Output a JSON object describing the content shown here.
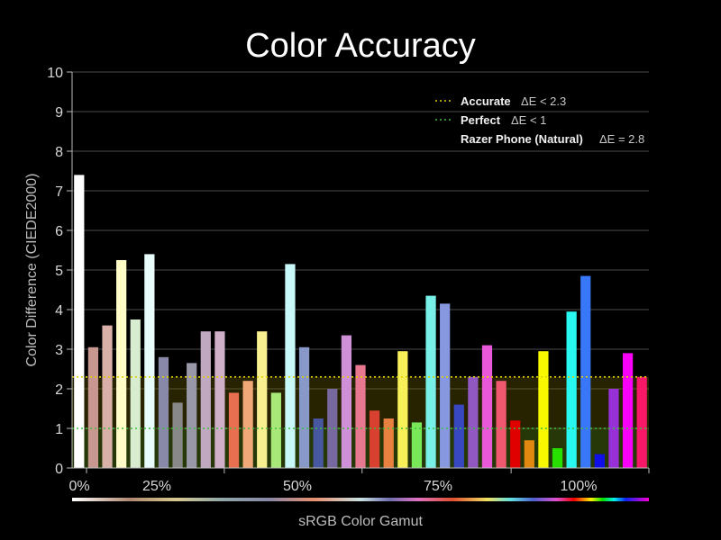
{
  "chart_data": {
    "type": "bar",
    "title": "Color Accuracy",
    "xlabel": "sRGB Color Gamut",
    "ylabel": "Color Difference (CIEDE2000)",
    "ylim": [
      0,
      10
    ],
    "yticks": [
      "0",
      "1",
      "2",
      "3",
      "4",
      "5",
      "6",
      "7",
      "8",
      "9",
      "10"
    ],
    "xticks": [
      "0%",
      "25%",
      "50%",
      "75%",
      "100%"
    ],
    "grid": true,
    "legend_placement": "top-right",
    "thresholds": [
      {
        "label": "Accurate",
        "de_label": "ΔE < 2.3",
        "value": 2.3,
        "color": "#e0d200"
      },
      {
        "label": "Perfect",
        "de_label": "ΔE < 1",
        "value": 1.0,
        "color": "#3fbf3f"
      }
    ],
    "series": [
      {
        "name": "Razer Phone (Natural)",
        "average_label": "ΔE = 2.8",
        "values": [
          7.4,
          3.05,
          3.6,
          5.25,
          3.75,
          5.4,
          2.8,
          1.65,
          2.65,
          3.45,
          3.45,
          1.9,
          2.2,
          3.45,
          1.9,
          5.15,
          3.05,
          1.25,
          2.0,
          3.35,
          2.6,
          1.45,
          1.25,
          2.95,
          1.15,
          4.35,
          4.15,
          1.6,
          2.3,
          3.1,
          2.2,
          1.2,
          0.7,
          2.95,
          0.5,
          3.95,
          4.85,
          0.35,
          2.0,
          2.9,
          2.3
        ],
        "colors": [
          "#ffffff",
          "#c89890",
          "#d8b0a8",
          "#fffcc8",
          "#d8ecd0",
          "#e8fcfc",
          "#8888a8",
          "#888888",
          "#9898a8",
          "#c0a8c0",
          "#d0b0c8",
          "#e87050",
          "#f0a878",
          "#f8f090",
          "#a8e878",
          "#c8f8f8",
          "#8898c8",
          "#4858a0",
          "#7868a0",
          "#d090d8",
          "#e87890",
          "#d84030",
          "#e88040",
          "#f8f058",
          "#78e858",
          "#78f0e8",
          "#8898e0",
          "#3848c0",
          "#9058c0",
          "#e858d8",
          "#f05870",
          "#e00000",
          "#e08810",
          "#f8f800",
          "#28e000",
          "#28f8f0",
          "#3878f8",
          "#1010e8",
          "#9830d8",
          "#f800f8",
          "#f81868"
        ]
      }
    ]
  }
}
